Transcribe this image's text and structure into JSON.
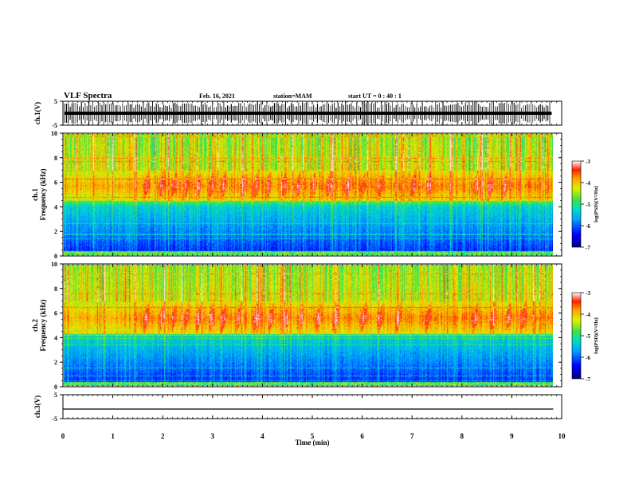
{
  "header": {
    "title": "VLF Spectra",
    "date": "Feb. 16, 2021",
    "station": "station=MAM",
    "start": "start  UT  =   0 : 40 : 1"
  },
  "chart_data": {
    "type": "heatmap",
    "xlabel": "Time  (min)",
    "xlim": [
      0,
      10
    ],
    "xticks": [
      "0",
      "1",
      "2",
      "3",
      "4",
      "5",
      "6",
      "7",
      "8",
      "9",
      "10"
    ],
    "data_end_min": 9.83,
    "panels": [
      {
        "id": "ch1-waveform",
        "type": "line",
        "ylabel": "ch.1(V)",
        "ylim": [
          -5,
          5
        ],
        "yticks": [
          "5",
          "-5"
        ],
        "burst_count": 260
      },
      {
        "id": "ch1-spectrogram",
        "type": "heatmap",
        "ylabel": "ch.1\nFrequency  (kHz)",
        "ylim": [
          0,
          10
        ],
        "yticks": [
          "0",
          "2",
          "4",
          "6",
          "8",
          "10"
        ],
        "colorbar": {
          "label": "log(PSD)(V²/Hz)",
          "range": [
            -7,
            -3
          ],
          "ticks": [
            "-3",
            "-4",
            "-5",
            "-6",
            "-7"
          ]
        },
        "emission_band_khz": [
          4.5,
          7.0
        ],
        "emission_peak_khz": 5.7,
        "chorus_element_times_min": [
          1.65,
          1.95,
          2.2,
          2.45,
          2.7,
          2.95,
          3.2,
          3.6,
          3.85,
          4.1,
          4.4,
          4.7,
          5.0,
          5.3,
          5.7,
          6.0,
          6.35,
          7.0,
          7.3,
          8.25,
          8.55,
          8.85
        ]
      },
      {
        "id": "ch2-spectrogram",
        "type": "heatmap",
        "ylabel": "ch.2\nFrequency  (kHz)",
        "ylim": [
          0,
          10
        ],
        "yticks": [
          "0",
          "2",
          "4",
          "6",
          "8",
          "10"
        ],
        "colorbar": {
          "label": "log(PSD)(V²/Hz)",
          "range": [
            -7,
            -3
          ],
          "ticks": [
            "-3",
            "-4",
            "-5",
            "-6",
            "-7"
          ]
        },
        "emission_band_khz": [
          4.3,
          7.0
        ],
        "emission_peak_khz": 5.6,
        "chorus_element_times_min": [
          1.65,
          1.95,
          2.2,
          2.45,
          2.7,
          2.95,
          3.2,
          3.5,
          3.85,
          4.15,
          4.45,
          4.75,
          5.1,
          5.45,
          6.0,
          6.35,
          6.7,
          7.3,
          8.25,
          8.6,
          8.9,
          9.2
        ]
      },
      {
        "id": "ch3-waveform",
        "type": "line",
        "ylabel": "ch.3(V)",
        "ylim": [
          -5,
          5
        ],
        "yticks": [
          "5",
          "-5"
        ],
        "values": [
          -1,
          -1
        ],
        "x": [
          0,
          9.83
        ]
      }
    ]
  }
}
